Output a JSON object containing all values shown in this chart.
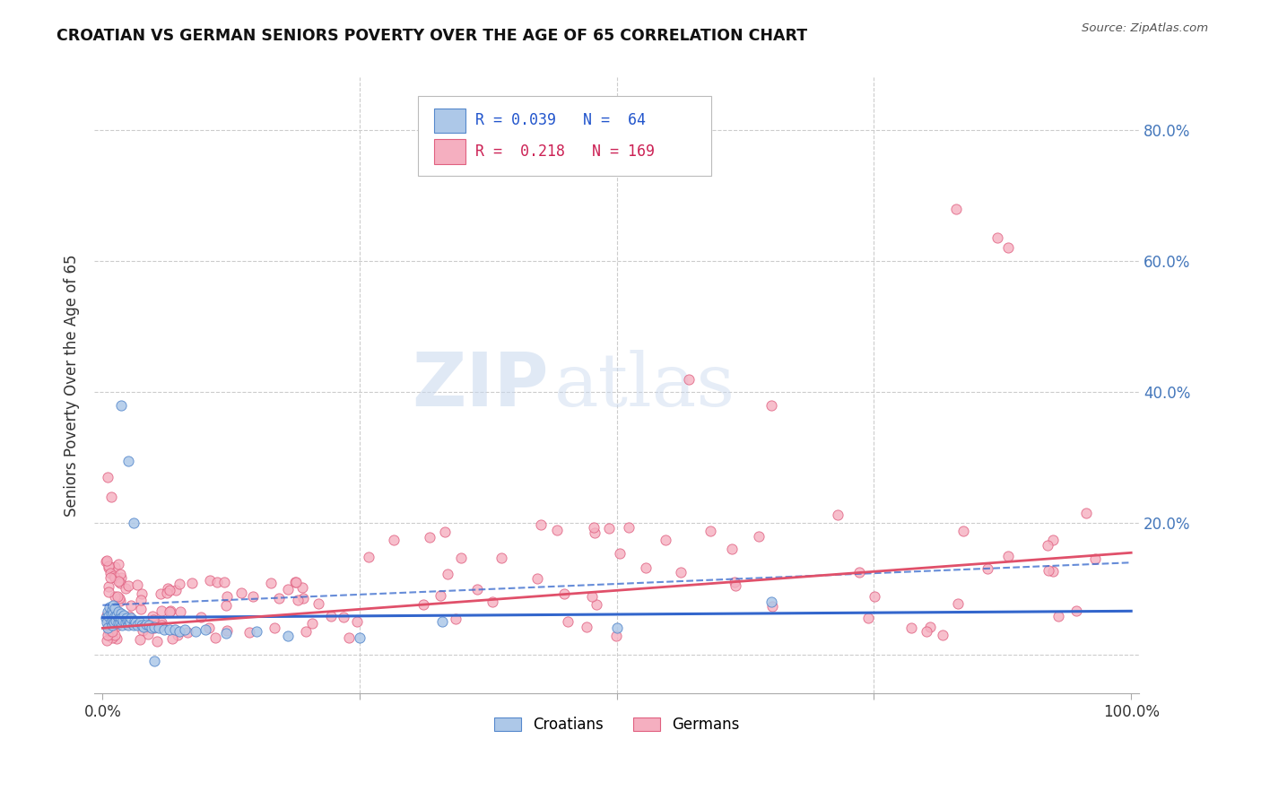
{
  "title": "CROATIAN VS GERMAN SENIORS POVERTY OVER THE AGE OF 65 CORRELATION CHART",
  "source": "Source: ZipAtlas.com",
  "ylabel": "Seniors Poverty Over the Age of 65",
  "background_color": "#ffffff",
  "grid_color": "#cccccc",
  "croatian_color": "#adc8e8",
  "german_color": "#f5afc0",
  "croatian_edge": "#5588cc",
  "german_edge": "#e06080",
  "trendline_croatian_color": "#3366cc",
  "trendline_german_color": "#e0506a",
  "R_croatian": 0.039,
  "N_croatian": 64,
  "R_german": 0.218,
  "N_german": 169,
  "ytick_color": "#4477bb",
  "xtick_color": "#333333"
}
